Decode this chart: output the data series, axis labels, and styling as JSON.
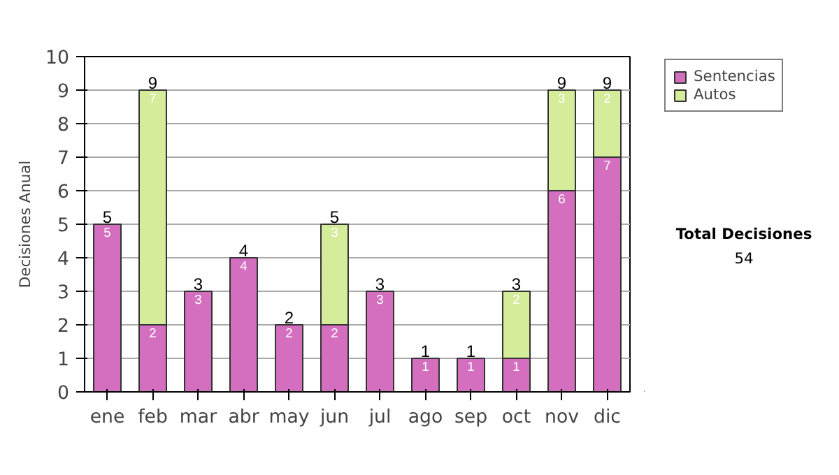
{
  "chart_data": {
    "type": "bar",
    "stacked": true,
    "ylabel": "Decisiones Anual",
    "categories": [
      "ene",
      "feb",
      "mar",
      "abr",
      "may",
      "jun",
      "jul",
      "ago",
      "sep",
      "oct",
      "nov",
      "dic"
    ],
    "series": [
      {
        "name": "Sentencias",
        "color": "#d46fc0",
        "values": [
          5,
          2,
          3,
          4,
          2,
          2,
          3,
          1,
          1,
          1,
          6,
          7
        ]
      },
      {
        "name": "Autos",
        "color": "#d5ec9a",
        "values": [
          null,
          7,
          null,
          null,
          null,
          3,
          null,
          null,
          null,
          2,
          3,
          2
        ]
      }
    ],
    "totals": [
      "5",
      "9",
      "3",
      "4",
      "2",
      "5",
      "3",
      "1",
      "1",
      "3",
      "9",
      "9"
    ],
    "data_labels": true,
    "ylim": [
      0,
      10
    ],
    "yticks": [
      0,
      1,
      2,
      3,
      4,
      5,
      6,
      7,
      8,
      9,
      10
    ],
    "grid": "y",
    "legend": "right",
    "annotations": [
      "Total Decisiones",
      "54"
    ]
  }
}
